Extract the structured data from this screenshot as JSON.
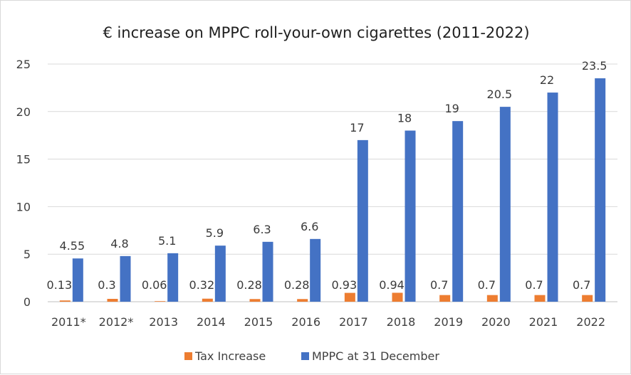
{
  "chart_data": {
    "type": "bar",
    "title": "€ increase on MPPC roll-your-own cigarettes (2011-2022)",
    "xlabel": "",
    "ylabel": "",
    "categories": [
      "2011*",
      "2012*",
      "2013",
      "2014",
      "2015",
      "2016",
      "2017",
      "2018",
      "2019",
      "2020",
      "2021",
      "2022"
    ],
    "series": [
      {
        "name": "Tax Increase",
        "color": "#ED7D31",
        "values": [
          0.13,
          0.3,
          0.06,
          0.32,
          0.28,
          0.28,
          0.93,
          0.94,
          0.7,
          0.7,
          0.7,
          0.7
        ],
        "labels": [
          "0.13",
          "0.3",
          "0.06",
          "0.32",
          "0.28",
          "0.28",
          "0.93",
          "0.94",
          "0.7",
          "0.7",
          "0.7",
          "0.7"
        ]
      },
      {
        "name": "MPPC at 31 December",
        "color": "#4472C4",
        "values": [
          4.55,
          4.8,
          5.1,
          5.9,
          6.3,
          6.6,
          17,
          18,
          19,
          20.5,
          22,
          23.5
        ],
        "labels": [
          "4.55",
          "4.8",
          "5.1",
          "5.9",
          "6.3",
          "6.6",
          "17",
          "18",
          "19",
          "20.5",
          "22",
          "23.5"
        ]
      }
    ],
    "ylim": [
      0,
      25
    ],
    "yticks": [
      0,
      5,
      10,
      15,
      20,
      25
    ],
    "ytick_labels": [
      "0",
      "5",
      "10",
      "15",
      "20",
      "25"
    ],
    "grid": true,
    "legend_position": "bottom"
  }
}
